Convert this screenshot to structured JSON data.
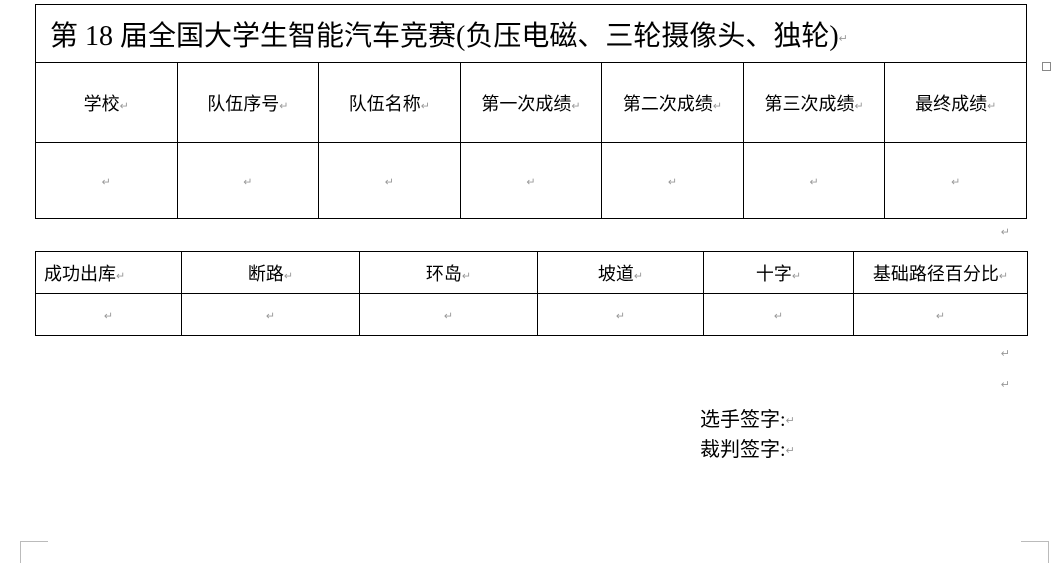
{
  "title": "第 18 届全国大学生智能汽车竞赛(负压电磁、三轮摄像头、独轮)",
  "table1": {
    "headers": [
      "学校",
      "队伍序号",
      "队伍名称",
      "第一次成绩",
      "第二次成绩",
      "第三次成绩",
      "最终成绩"
    ],
    "row": [
      "",
      "",
      "",
      "",
      "",
      "",
      ""
    ]
  },
  "table2": {
    "headers": [
      "成功出库",
      "断路",
      "环岛",
      "坡道",
      "十字",
      "基础路径百分比"
    ],
    "row": [
      "",
      "",
      "",
      "",
      "",
      ""
    ]
  },
  "signatures": {
    "player": "选手签字:",
    "judge": "裁判签字:"
  },
  "marks": {
    "para": "↵",
    "cell": "↵",
    "end": "↵"
  }
}
